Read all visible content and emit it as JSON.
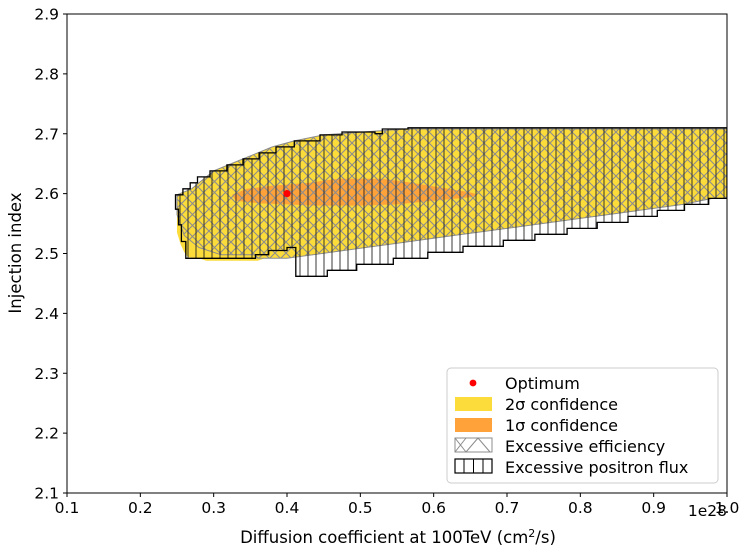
{
  "chart_data": {
    "type": "contour-region",
    "x_label_parts": [
      "Diffusion coefficient at 100TeV (cm",
      "2",
      "/s)"
    ],
    "ylabel": "Injection index",
    "x_offset_label": "1e28",
    "xlim": [
      0.1,
      1.0
    ],
    "ylim": [
      2.1,
      2.9
    ],
    "xticks": [
      0.1,
      0.2,
      0.3,
      0.4,
      0.5,
      0.6,
      0.7,
      0.8,
      0.9,
      1.0
    ],
    "xtick_labels": [
      "0.1",
      "0.2",
      "0.3",
      "0.4",
      "0.5",
      "0.6",
      "0.7",
      "0.8",
      "0.9",
      "1.0"
    ],
    "yticks": [
      2.1,
      2.2,
      2.3,
      2.4,
      2.5,
      2.6,
      2.7,
      2.8,
      2.9
    ],
    "ytick_labels": [
      "2.1",
      "2.2",
      "2.3",
      "2.4",
      "2.5",
      "2.6",
      "2.7",
      "2.8",
      "2.9"
    ],
    "optimum": {
      "x": 0.4,
      "y": 2.6,
      "color": "#ff0000"
    },
    "regions": [
      {
        "name": "2sigma",
        "color": "#fcdc3b",
        "polygon": [
          [
            0.25,
            2.598
          ],
          [
            0.27,
            2.608
          ],
          [
            0.28,
            2.618
          ],
          [
            0.29,
            2.628
          ],
          [
            0.3,
            2.638
          ],
          [
            0.32,
            2.648
          ],
          [
            0.34,
            2.658
          ],
          [
            0.36,
            2.668
          ],
          [
            0.38,
            2.678
          ],
          [
            0.41,
            2.688
          ],
          [
            0.45,
            2.698
          ],
          [
            0.56,
            2.708
          ],
          [
            1.0,
            2.708
          ],
          [
            1.0,
            2.592
          ],
          [
            0.98,
            2.592
          ],
          [
            0.94,
            2.582
          ],
          [
            0.88,
            2.572
          ],
          [
            0.82,
            2.562
          ],
          [
            0.76,
            2.552
          ],
          [
            0.7,
            2.542
          ],
          [
            0.64,
            2.532
          ],
          [
            0.58,
            2.522
          ],
          [
            0.52,
            2.512
          ],
          [
            0.46,
            2.502
          ],
          [
            0.4,
            2.492
          ],
          [
            0.37,
            2.492
          ],
          [
            0.36,
            2.488
          ],
          [
            0.29,
            2.488
          ],
          [
            0.28,
            2.492
          ],
          [
            0.265,
            2.494
          ],
          [
            0.26,
            2.502
          ],
          [
            0.255,
            2.515
          ],
          [
            0.25,
            2.535
          ]
        ]
      },
      {
        "name": "1sigma",
        "color": "#ffa23a",
        "polygon": [
          [
            0.325,
            2.598
          ],
          [
            0.345,
            2.608
          ],
          [
            0.38,
            2.613
          ],
          [
            0.43,
            2.618
          ],
          [
            0.47,
            2.625
          ],
          [
            0.53,
            2.625
          ],
          [
            0.57,
            2.618
          ],
          [
            0.6,
            2.612
          ],
          [
            0.65,
            2.602
          ],
          [
            0.66,
            2.598
          ],
          [
            0.65,
            2.594
          ],
          [
            0.6,
            2.588
          ],
          [
            0.55,
            2.582
          ],
          [
            0.5,
            2.58
          ],
          [
            0.44,
            2.58
          ],
          [
            0.4,
            2.582
          ],
          [
            0.36,
            2.584
          ],
          [
            0.33,
            2.588
          ]
        ]
      },
      {
        "name": "efficiency-hatch",
        "polygon": [
          [
            0.3,
            2.638
          ],
          [
            0.34,
            2.658
          ],
          [
            0.38,
            2.678
          ],
          [
            0.41,
            2.688
          ],
          [
            0.45,
            2.698
          ],
          [
            0.56,
            2.708
          ],
          [
            1.0,
            2.708
          ],
          [
            1.0,
            2.592
          ],
          [
            0.98,
            2.592
          ],
          [
            0.94,
            2.582
          ],
          [
            0.88,
            2.572
          ],
          [
            0.82,
            2.562
          ],
          [
            0.76,
            2.552
          ],
          [
            0.7,
            2.542
          ],
          [
            0.64,
            2.532
          ],
          [
            0.58,
            2.522
          ],
          [
            0.52,
            2.512
          ],
          [
            0.46,
            2.502
          ],
          [
            0.4,
            2.492
          ],
          [
            0.36,
            2.492
          ],
          [
            0.355,
            2.498
          ],
          [
            0.31,
            2.498
          ],
          [
            0.28,
            2.51
          ],
          [
            0.26,
            2.53
          ],
          [
            0.25,
            2.565
          ],
          [
            0.25,
            2.598
          ],
          [
            0.27,
            2.608
          ],
          [
            0.28,
            2.618
          ],
          [
            0.29,
            2.628
          ]
        ]
      },
      {
        "name": "positron-hatch",
        "polygon": [
          [
            0.248,
            2.574
          ],
          [
            0.248,
            2.598
          ],
          [
            0.258,
            2.598
          ],
          [
            0.258,
            2.608
          ],
          [
            0.268,
            2.608
          ],
          [
            0.268,
            2.618
          ],
          [
            0.278,
            2.618
          ],
          [
            0.278,
            2.628
          ],
          [
            0.295,
            2.628
          ],
          [
            0.295,
            2.638
          ],
          [
            0.318,
            2.638
          ],
          [
            0.318,
            2.648
          ],
          [
            0.34,
            2.648
          ],
          [
            0.34,
            2.658
          ],
          [
            0.362,
            2.658
          ],
          [
            0.362,
            2.668
          ],
          [
            0.385,
            2.668
          ],
          [
            0.385,
            2.678
          ],
          [
            0.41,
            2.678
          ],
          [
            0.41,
            2.688
          ],
          [
            0.445,
            2.688
          ],
          [
            0.445,
            2.698
          ],
          [
            0.475,
            2.698
          ],
          [
            0.475,
            2.703
          ],
          [
            0.52,
            2.703
          ],
          [
            0.52,
            2.7
          ],
          [
            0.53,
            2.7
          ],
          [
            0.53,
            2.708
          ],
          [
            0.565,
            2.708
          ],
          [
            0.565,
            2.71
          ],
          [
            1.0,
            2.71
          ],
          [
            1.0,
            2.592
          ],
          [
            0.975,
            2.592
          ],
          [
            0.975,
            2.582
          ],
          [
            0.942,
            2.582
          ],
          [
            0.942,
            2.572
          ],
          [
            0.905,
            2.572
          ],
          [
            0.905,
            2.562
          ],
          [
            0.865,
            2.562
          ],
          [
            0.865,
            2.552
          ],
          [
            0.823,
            2.552
          ],
          [
            0.823,
            2.542
          ],
          [
            0.782,
            2.542
          ],
          [
            0.782,
            2.532
          ],
          [
            0.738,
            2.532
          ],
          [
            0.738,
            2.522
          ],
          [
            0.695,
            2.522
          ],
          [
            0.695,
            2.512
          ],
          [
            0.64,
            2.512
          ],
          [
            0.64,
            2.502
          ],
          [
            0.592,
            2.502
          ],
          [
            0.592,
            2.492
          ],
          [
            0.545,
            2.492
          ],
          [
            0.545,
            2.482
          ],
          [
            0.495,
            2.482
          ],
          [
            0.495,
            2.472
          ],
          [
            0.455,
            2.472
          ],
          [
            0.455,
            2.462
          ],
          [
            0.412,
            2.462
          ],
          [
            0.412,
            2.51
          ],
          [
            0.4,
            2.51
          ],
          [
            0.4,
            2.505
          ],
          [
            0.375,
            2.505
          ],
          [
            0.375,
            2.498
          ],
          [
            0.357,
            2.498
          ],
          [
            0.357,
            2.492
          ],
          [
            0.262,
            2.492
          ],
          [
            0.262,
            2.52
          ],
          [
            0.256,
            2.52
          ],
          [
            0.256,
            2.548
          ],
          [
            0.252,
            2.548
          ],
          [
            0.252,
            2.574
          ]
        ]
      }
    ],
    "legend": {
      "position": "bottom-right",
      "entries": [
        {
          "label": "Optimum",
          "kind": "marker"
        },
        {
          "label": "2σ confidence",
          "kind": "fill",
          "color": "#fcdc3b"
        },
        {
          "label": "1σ confidence",
          "kind": "fill",
          "color": "#ffa23a"
        },
        {
          "label": "Excessive efficiency",
          "kind": "hatch-x"
        },
        {
          "label": "Excessive positron flux",
          "kind": "hatch-v"
        }
      ]
    }
  }
}
